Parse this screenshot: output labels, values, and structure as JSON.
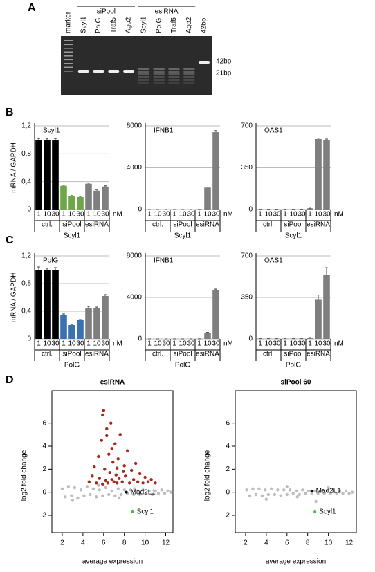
{
  "panel_labels": [
    "A",
    "B",
    "C",
    "D"
  ],
  "gel": {
    "groups": [
      "siPool",
      "esiRNA"
    ],
    "lanes": [
      "marker",
      "Scyl1",
      "PolG",
      "Traf5",
      "Ago2",
      "Scyl1",
      "PolG",
      "Traf5",
      "Ago2",
      "42bp"
    ],
    "sizes": [
      "42bp",
      "21bp"
    ]
  },
  "chart_data": [
    {
      "type": "bar",
      "title": "Scyl1",
      "ylabel": "mRNA / GAPDH",
      "xlabel": "Scyl1",
      "unit": "nM",
      "categories": [
        "1",
        "10",
        "30"
      ],
      "ylim": [
        0,
        1.2
      ],
      "yticks": [
        0,
        {
          "value": 0.4,
          "label": "0,4"
        },
        {
          "value": 0.8,
          "label": "0,8"
        },
        {
          "value": 1.2,
          "label": "1,2"
        }
      ],
      "grid": true,
      "groups": [
        {
          "name": "ctrl.",
          "color": "#000000",
          "values": [
            1.0,
            1.0,
            1.0
          ],
          "errors": [
            0.02,
            0.02,
            0.02
          ]
        },
        {
          "name": "siPool",
          "color": "#70a64a",
          "values": [
            0.34,
            0.19,
            0.18
          ],
          "errors": [
            0.01,
            0.01,
            0.01
          ]
        },
        {
          "name": "esiRNA",
          "color": "#7f7f7f",
          "values": [
            0.37,
            0.27,
            0.33
          ],
          "errors": [
            0.01,
            0.02,
            0.01
          ]
        }
      ]
    },
    {
      "type": "bar",
      "title": "IFNB1",
      "xlabel": "Scyl1",
      "unit": "nM",
      "categories": [
        "1",
        "10",
        "30"
      ],
      "ylim": [
        0,
        8000
      ],
      "yticks": [
        0,
        4000,
        8000
      ],
      "grid": true,
      "groups": [
        {
          "name": "ctrl.",
          "color": "#7f7f7f",
          "values": [
            0,
            0,
            0
          ],
          "errors": [
            0,
            0,
            0
          ]
        },
        {
          "name": "siPool",
          "color": "#7f7f7f",
          "values": [
            0,
            0,
            0
          ],
          "errors": [
            0,
            0,
            0
          ]
        },
        {
          "name": "esiRNA",
          "color": "#7f7f7f",
          "values": [
            10,
            2100,
            7400
          ],
          "errors": [
            0,
            50,
            150
          ]
        }
      ]
    },
    {
      "type": "bar",
      "title": "OAS1",
      "xlabel": "Scyl1",
      "unit": "nM",
      "categories": [
        "1",
        "10",
        "30"
      ],
      "ylim": [
        0,
        700
      ],
      "yticks": [
        0,
        350,
        700
      ],
      "grid": true,
      "groups": [
        {
          "name": "ctrl.",
          "color": "#7f7f7f",
          "values": [
            2,
            2,
            2
          ],
          "errors": [
            0,
            0,
            0
          ]
        },
        {
          "name": "siPool",
          "color": "#7f7f7f",
          "values": [
            2,
            2,
            2
          ],
          "errors": [
            0,
            0,
            0
          ]
        },
        {
          "name": "esiRNA",
          "color": "#7f7f7f",
          "values": [
            10,
            590,
            580
          ],
          "errors": [
            1,
            8,
            10
          ]
        }
      ]
    },
    {
      "type": "bar",
      "title": "PolG",
      "ylabel": "mRNA / GAPDH",
      "xlabel": "PolG",
      "unit": "nM",
      "categories": [
        "1",
        "10",
        "30"
      ],
      "ylim": [
        0,
        1.2
      ],
      "yticks": [
        0,
        {
          "value": 0.4,
          "label": "0,4"
        },
        {
          "value": 0.8,
          "label": "0,8"
        },
        {
          "value": 1.2,
          "label": "1,2"
        }
      ],
      "grid": true,
      "groups": [
        {
          "name": "ctrl.",
          "color": "#000000",
          "values": [
            1.0,
            1.0,
            1.0
          ],
          "errors": [
            0.04,
            0.02,
            0.03
          ]
        },
        {
          "name": "siPool",
          "color": "#3a72b0",
          "values": [
            0.35,
            0.2,
            0.27
          ],
          "errors": [
            0.01,
            0.01,
            0.01
          ]
        },
        {
          "name": "esiRNA",
          "color": "#7f7f7f",
          "values": [
            0.45,
            0.45,
            0.62
          ],
          "errors": [
            0.02,
            0.01,
            0.02
          ]
        }
      ]
    },
    {
      "type": "bar",
      "title": "IFNB1",
      "xlabel": "PolG",
      "unit": "nM",
      "categories": [
        "1",
        "10",
        "30"
      ],
      "ylim": [
        0,
        8000
      ],
      "yticks": [
        0,
        4000,
        8000
      ],
      "grid": true,
      "groups": [
        {
          "name": "ctrl.",
          "color": "#7f7f7f",
          "values": [
            0,
            0,
            0
          ],
          "errors": [
            0,
            0,
            0
          ]
        },
        {
          "name": "siPool",
          "color": "#7f7f7f",
          "values": [
            0,
            0,
            0
          ],
          "errors": [
            0,
            0,
            0
          ]
        },
        {
          "name": "esiRNA",
          "color": "#7f7f7f",
          "values": [
            5,
            600,
            4700
          ],
          "errors": [
            0,
            30,
            100
          ]
        }
      ]
    },
    {
      "type": "bar",
      "title": "OAS1",
      "xlabel": "PolG",
      "unit": "nM",
      "categories": [
        "1",
        "10",
        "30"
      ],
      "ylim": [
        0,
        700
      ],
      "yticks": [
        0,
        350,
        700
      ],
      "grid": true,
      "groups": [
        {
          "name": "ctrl.",
          "color": "#7f7f7f",
          "values": [
            2,
            2,
            2
          ],
          "errors": [
            0,
            0,
            0
          ]
        },
        {
          "name": "siPool",
          "color": "#7f7f7f",
          "values": [
            2,
            2,
            2
          ],
          "errors": [
            0,
            0,
            0
          ]
        },
        {
          "name": "esiRNA",
          "color": "#7f7f7f",
          "values": [
            10,
            330,
            540
          ],
          "errors": [
            2,
            40,
            60
          ]
        }
      ]
    },
    {
      "type": "scatter",
      "title": "esiRNA",
      "xlabel": "average expression",
      "ylabel": "log2 fold change",
      "xlim": [
        1,
        12.7
      ],
      "ylim": [
        -3.5,
        8.8
      ],
      "xticks": [
        2,
        4,
        6,
        8,
        10,
        12
      ],
      "yticks": [
        -2,
        0,
        2,
        4,
        6
      ],
      "points": [
        {
          "color": "#bdbdbd",
          "x": [
            2.0,
            2.3,
            2.6,
            2.9,
            3.2,
            3.5,
            3.8,
            4.1,
            4.4,
            4.7,
            5.0,
            5.3,
            5.6,
            5.9,
            6.2,
            6.5,
            6.8,
            7.1,
            7.4,
            7.7,
            8.0,
            8.3,
            8.6,
            8.9,
            9.2,
            9.5,
            9.8,
            10.1,
            10.4,
            10.7,
            11.0,
            11.3,
            11.6,
            11.9,
            12.2,
            12.5,
            3.0,
            5.5,
            7.5,
            9.0
          ],
          "y": [
            0.3,
            -0.4,
            0.5,
            -0.3,
            0.4,
            -0.5,
            0.2,
            -0.3,
            0.5,
            -0.2,
            0.3,
            -0.4,
            0.2,
            -0.3,
            0.4,
            -0.2,
            0.1,
            -0.3,
            0.3,
            -0.2,
            0.2,
            -0.1,
            0.2,
            -0.2,
            0.1,
            -0.2,
            0.2,
            -0.1,
            0.1,
            -0.2,
            0.1,
            -0.1,
            0.2,
            -0.1,
            0.1,
            0,
            -0.7,
            0.6,
            -0.5,
            0.3
          ]
        },
        {
          "color": "#a32a1c",
          "x": [
            4.6,
            4.9,
            5.1,
            5.3,
            5.5,
            5.6,
            5.8,
            5.9,
            6.0,
            6.1,
            6.2,
            6.3,
            6.4,
            6.5,
            6.6,
            6.7,
            6.8,
            6.9,
            7.0,
            7.1,
            7.2,
            7.3,
            7.4,
            7.5,
            7.6,
            7.8,
            8.0,
            8.1,
            8.3,
            8.5,
            8.7,
            8.9,
            9.1,
            9.3,
            9.5,
            9.8,
            10.0,
            10.3,
            10.6,
            11.0,
            5.9,
            6.3,
            6.8,
            7.3,
            7.9
          ],
          "y": [
            0.9,
            1.4,
            2.2,
            0.8,
            3.1,
            1.2,
            4.5,
            0.7,
            7.1,
            2.0,
            1.0,
            5.5,
            0.8,
            3.3,
            1.7,
            6.0,
            1.1,
            2.6,
            0.9,
            4.2,
            1.5,
            0.8,
            2.9,
            1.2,
            5.0,
            0.9,
            2.3,
            1.4,
            3.6,
            0.8,
            1.9,
            1.1,
            2.5,
            0.9,
            1.6,
            0.8,
            1.3,
            0.9,
            1.1,
            0.8,
            6.7,
            4.9,
            3.8,
            2.1,
            1.8
          ]
        }
      ],
      "labels": [
        {
          "text": "Mad2L1",
          "color": "#000000",
          "x": 8.2,
          "y": 0.0
        },
        {
          "text": "Scyl1",
          "color": "#3fbf3f",
          "x": 8.8,
          "y": -1.7
        }
      ]
    },
    {
      "type": "scatter",
      "title": "siPool 60",
      "xlabel": "average expression",
      "ylabel": "log2 fold change",
      "xlim": [
        1,
        12.7
      ],
      "ylim": [
        -3.5,
        8.8
      ],
      "xticks": [
        2,
        4,
        6,
        8,
        10,
        12
      ],
      "yticks": [
        -2,
        0,
        2,
        4,
        6
      ],
      "points": [
        {
          "color": "#bdbdbd",
          "x": [
            2.1,
            2.4,
            2.7,
            3.0,
            3.3,
            3.6,
            3.9,
            4.2,
            4.5,
            4.8,
            5.1,
            5.4,
            5.7,
            6.0,
            6.3,
            6.6,
            6.9,
            7.2,
            7.5,
            7.8,
            8.1,
            8.4,
            8.7,
            9.0,
            9.3,
            9.6,
            9.9,
            10.2,
            10.5,
            10.8,
            11.1,
            11.4,
            11.7,
            12.0,
            12.3,
            4.0,
            6.0,
            7.0,
            8.8,
            10.0
          ],
          "y": [
            0.2,
            -0.3,
            0.3,
            -0.2,
            0.3,
            -0.3,
            0.2,
            -0.2,
            0.3,
            -0.2,
            0.2,
            -0.3,
            0.2,
            -0.2,
            0.2,
            -0.1,
            0.1,
            -0.2,
            0.2,
            -0.1,
            0.1,
            -0.1,
            0.1,
            -0.1,
            0.1,
            -0.1,
            0.1,
            -0.1,
            0.1,
            -0.1,
            0.1,
            -0.1,
            0.1,
            -0.1,
            0.0,
            -0.6,
            0.5,
            -0.4,
            -0.8,
            0.4
          ]
        }
      ],
      "labels": [
        {
          "text": "Mad2L1",
          "color": "#000000",
          "x": 8.4,
          "y": 0.1
        },
        {
          "text": "Scyl1",
          "color": "#3fbf3f",
          "x": 8.7,
          "y": -1.7
        }
      ]
    }
  ]
}
